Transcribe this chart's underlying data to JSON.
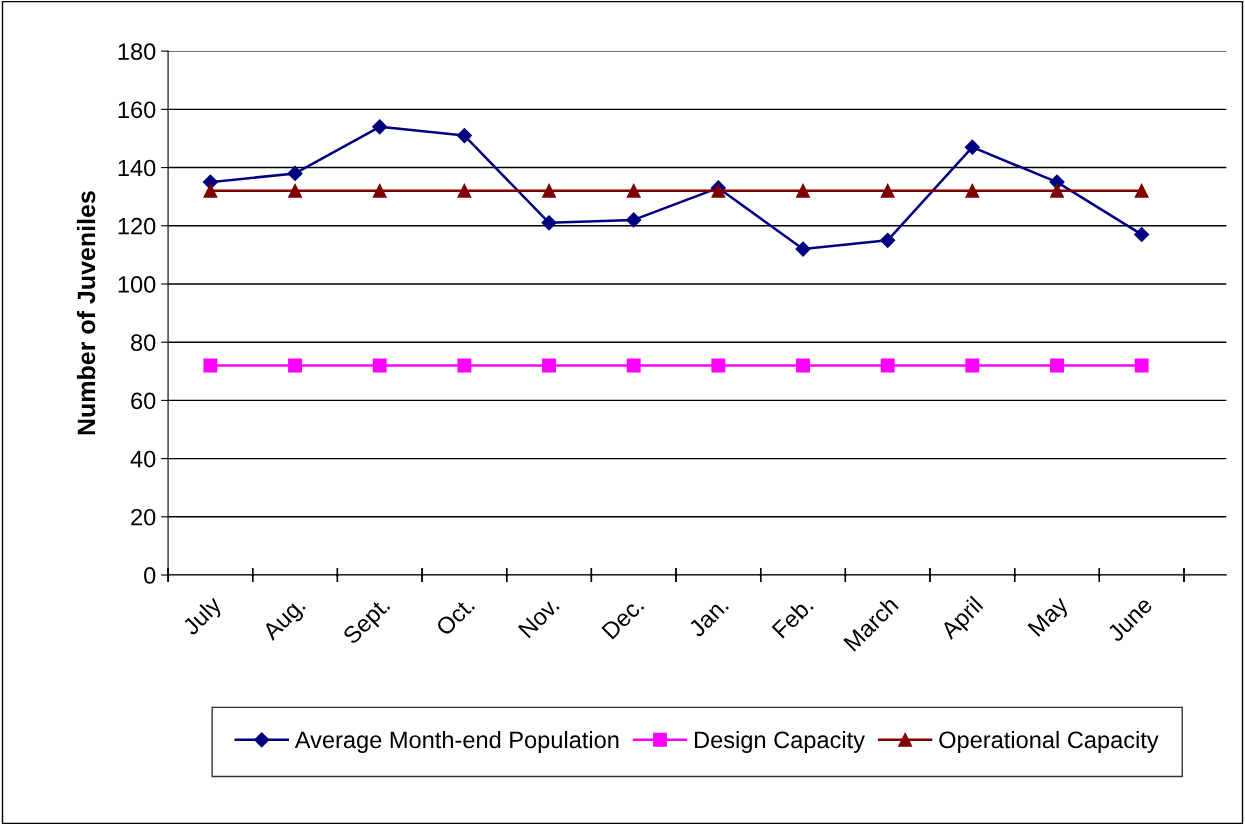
{
  "chart_data": {
    "type": "line",
    "ylabel": "Number of Juveniles",
    "categories": [
      "July",
      "Aug.",
      "Sept.",
      "Oct.",
      "Nov.",
      "Dec.",
      "Jan.",
      "Feb.",
      "March",
      "April",
      "May",
      "June"
    ],
    "series": [
      {
        "name": "Average Month-end Population",
        "color": "#000080",
        "marker": "diamond",
        "values": [
          135,
          138,
          154,
          151,
          121,
          122,
          133,
          112,
          115,
          147,
          135,
          117
        ]
      },
      {
        "name": "Design Capacity",
        "color": "#ff00ff",
        "marker": "square",
        "values": [
          72,
          72,
          72,
          72,
          72,
          72,
          72,
          72,
          72,
          72,
          72,
          72
        ]
      },
      {
        "name": "Operational Capacity",
        "color": "#800000",
        "marker": "triangle",
        "values": [
          132,
          132,
          132,
          132,
          132,
          132,
          132,
          132,
          132,
          132,
          132,
          132
        ]
      }
    ],
    "ylim": [
      0,
      180
    ],
    "yticks": [
      0,
      20,
      40,
      60,
      80,
      100,
      120,
      140,
      160,
      180
    ],
    "grid": "y",
    "legend": "bottom",
    "line_style": "solid"
  }
}
